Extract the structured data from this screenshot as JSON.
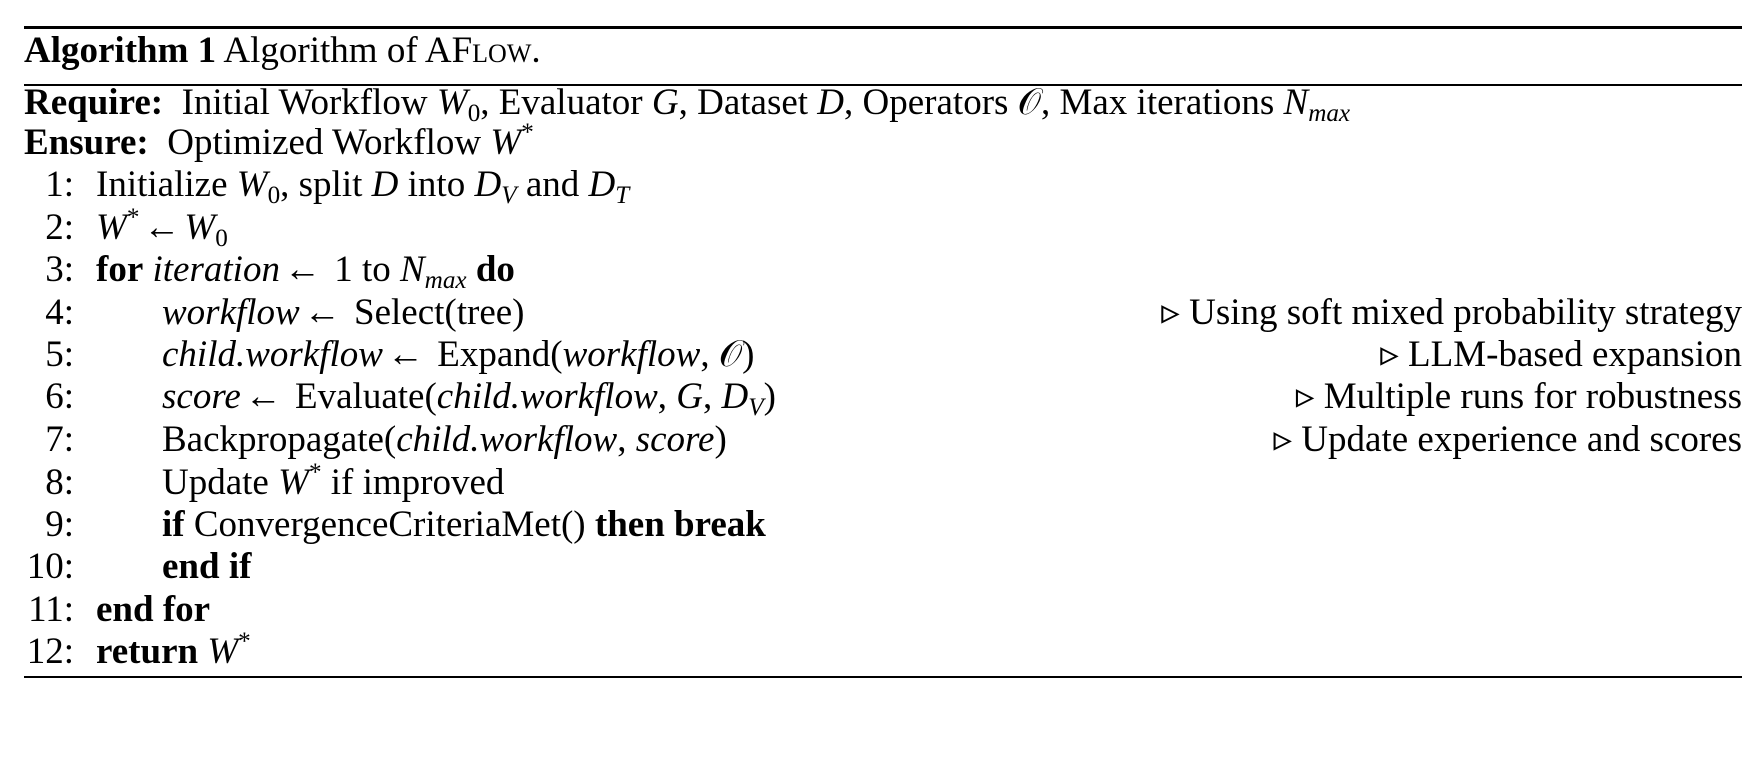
{
  "caption": {
    "label": "Algorithm 1",
    "text_pre": "Algorithm of ",
    "name_a": "A",
    "name_f": "F",
    "name_low": "low",
    "dot": "."
  },
  "require": {
    "label": "Require:",
    "t1": "Initial Workflow ",
    "W": "W",
    "sub0": "0",
    "t2": ", Evaluator ",
    "G": "G",
    "t3": ", Dataset ",
    "D": "D",
    "t4": ", Operators ",
    "O": "𝒪",
    "t5": ", Max iterations ",
    "N": "N",
    "max": "max"
  },
  "ensure": {
    "label": "Ensure:",
    "text": "Optimized Workflow ",
    "W": "W",
    "star": "*"
  },
  "line_numbers": [
    "1:",
    "2:",
    "3:",
    "4:",
    "5:",
    "6:",
    "7:",
    "8:",
    "9:",
    "10:",
    "11:",
    "12:"
  ],
  "arrow": "←",
  "comment_marker": "▹",
  "l1": {
    "t1": "Initialize ",
    "W": "W",
    "sub0": "0",
    "t2": ", split ",
    "D": "D",
    "t3": " into ",
    "DV": "D",
    "V": "V",
    "t4": " and ",
    "DT": "D",
    "T": "T"
  },
  "l2": {
    "W": "W",
    "star": "*",
    "W0": "W",
    "sub0": "0"
  },
  "l3": {
    "for": "for",
    "var": "iteration",
    "one": " 1 to ",
    "N": "N",
    "max": "max",
    "do": "do"
  },
  "l4": {
    "var": "workflow",
    "call": " Select(tree)",
    "comment": "Using soft mixed probability strategy"
  },
  "l5": {
    "var": "child.workflow",
    "call": " Expand(",
    "arg": "workflow",
    "sep": ", ",
    "O": "𝒪",
    "close": ")",
    "comment": "LLM-based expansion"
  },
  "l6": {
    "var": "score",
    "call": " Evaluate(",
    "arg": "child.workflow",
    "sep1": ", ",
    "G": "G",
    "sep2": ", ",
    "D": "D",
    "V": "V",
    "close": ")",
    "comment": "Multiple runs for robustness"
  },
  "l7": {
    "call": "Backpropagate(",
    "arg1": "child.workflow",
    "sep": ", ",
    "arg2": "score",
    "close": ")",
    "comment": "Update experience and scores"
  },
  "l8": {
    "t1": "Update ",
    "W": "W",
    "star": "*",
    "t2": " if improved"
  },
  "l9": {
    "if": "if",
    "call": " ConvergenceCriteriaMet() ",
    "then": "then break"
  },
  "l10": {
    "text": "end if"
  },
  "l11": {
    "text": "end for"
  },
  "l12": {
    "ret": "return",
    "W": "W",
    "star": "*"
  }
}
